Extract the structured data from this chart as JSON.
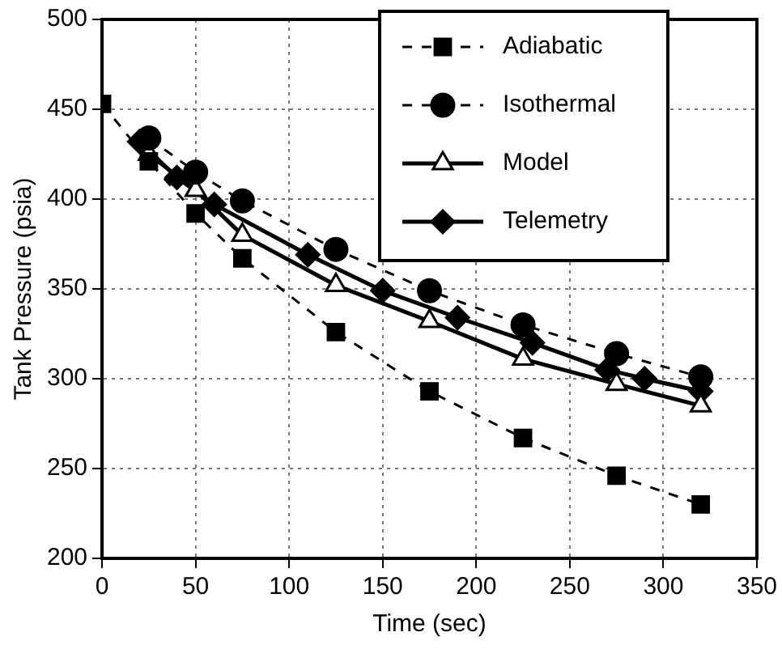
{
  "chart_data": {
    "type": "line",
    "xlabel": "Time (sec)",
    "ylabel": "Tank Pressure (psia)",
    "xlim": [
      0,
      350
    ],
    "xticks": [
      0,
      50,
      100,
      150,
      200,
      250,
      300,
      350
    ],
    "ylim": [
      200,
      500
    ],
    "yticks": [
      200,
      250,
      300,
      350,
      400,
      450,
      500
    ],
    "grid": true,
    "legend": "top right",
    "series": [
      {
        "name": "Adiabatic",
        "color": "#000000",
        "marker": "square",
        "line_style": "dashed",
        "x": [
          0,
          25,
          50,
          75,
          125,
          175,
          225,
          275,
          320
        ],
        "values": [
          453,
          421,
          392,
          367,
          326,
          293,
          267,
          246,
          230
        ]
      },
      {
        "name": "Isothermal",
        "color": "#000000",
        "marker": "circle",
        "line_style": "dashed",
        "x": [
          25,
          50,
          75,
          125,
          175,
          225,
          275,
          320
        ],
        "values": [
          434,
          415,
          399,
          372,
          349,
          330,
          314,
          301
        ]
      },
      {
        "name": "Model",
        "color": "#000000",
        "marker": "triangle",
        "line_style": "solid",
        "x": [
          25,
          50,
          75,
          125,
          175,
          225,
          275,
          320
        ],
        "values": [
          425,
          405,
          380,
          352,
          332,
          311,
          297,
          285
        ]
      },
      {
        "name": "Telemetry",
        "color": "#000000",
        "marker": "diamond",
        "line_style": "solid",
        "x": [
          20,
          40,
          60,
          110,
          150,
          190,
          230,
          270,
          290,
          320
        ],
        "values": [
          432,
          412,
          397,
          369,
          349,
          334,
          320,
          305,
          300,
          293
        ]
      }
    ]
  }
}
